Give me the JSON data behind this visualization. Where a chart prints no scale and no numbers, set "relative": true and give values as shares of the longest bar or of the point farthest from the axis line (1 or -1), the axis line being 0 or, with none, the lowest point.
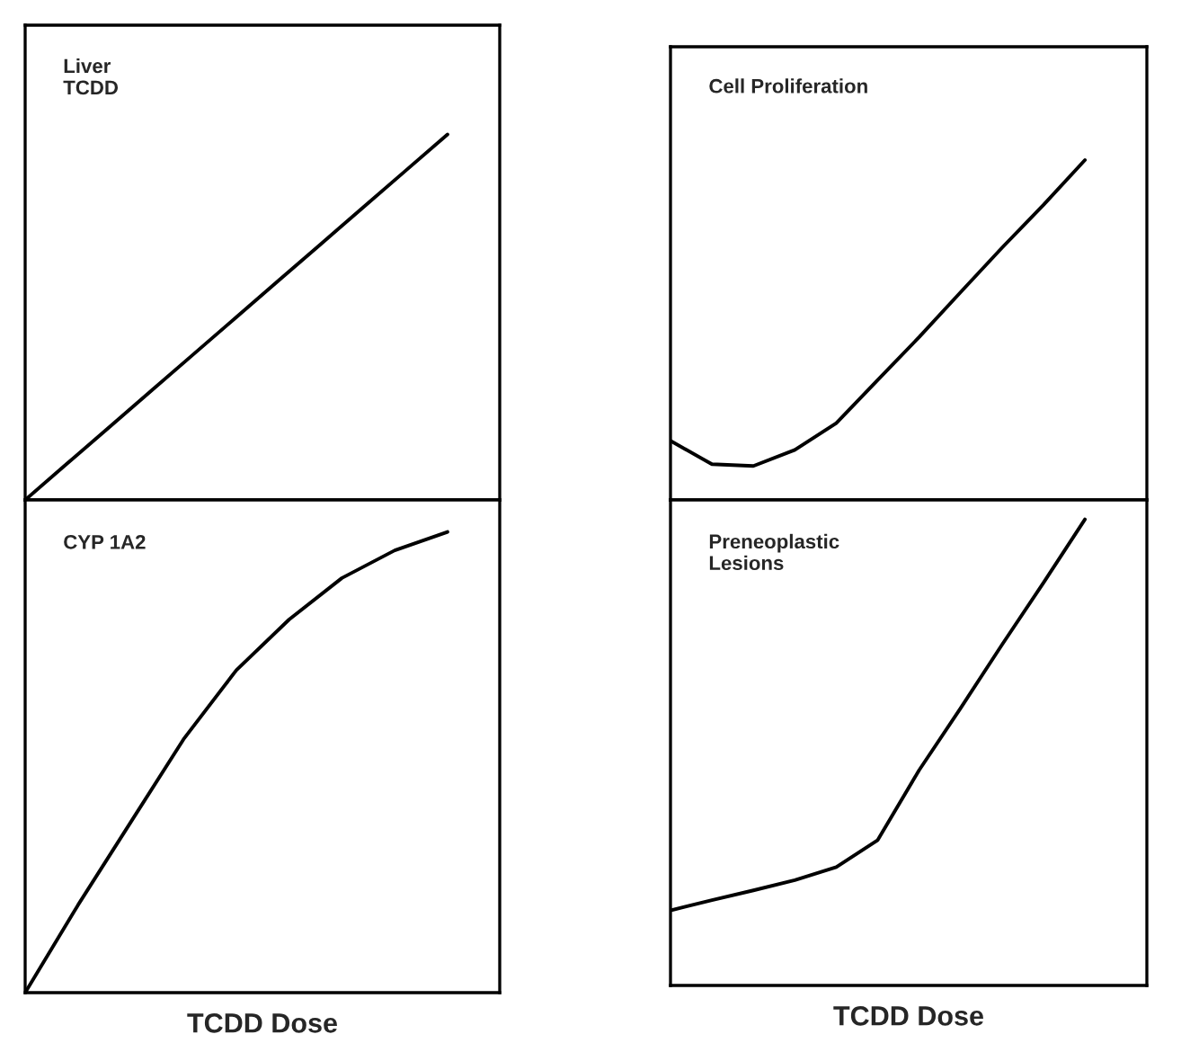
{
  "chart_data": [
    {
      "type": "line",
      "title": "Liver\nTCDD",
      "relative": true,
      "tick_labels": false,
      "categories": [
        null,
        null,
        null,
        null,
        null,
        null,
        null,
        null,
        null,
        null,
        null
      ],
      "series": [
        {
          "color": "#000000",
          "values": [
            0,
            0.1,
            0.2,
            0.3,
            0.4,
            0.5,
            0.6,
            0.7,
            0.8,
            0.9,
            1
          ]
        }
      ]
    },
    {
      "type": "line",
      "title": "CYP 1A2",
      "xlabel": "TCDD Dose",
      "relative": true,
      "tick_labels": false,
      "categories": [
        null,
        null,
        null,
        null,
        null,
        null,
        null,
        null,
        null
      ],
      "series": [
        {
          "color": "#000000",
          "values": [
            0,
            0.19,
            0.37,
            0.55,
            0.7,
            0.81,
            0.9,
            0.96,
            1
          ]
        }
      ]
    },
    {
      "type": "line",
      "title": "Cell Proliferation",
      "relative": true,
      "tick_labels": false,
      "categories": [
        null,
        null,
        null,
        null,
        null,
        null,
        null,
        null,
        null,
        null,
        null
      ],
      "series": [
        {
          "color": "#000000",
          "values": [
            0.174,
            0.105,
            0.1,
            0.147,
            0.226,
            0.353,
            0.479,
            0.611,
            0.742,
            0.868,
            1
          ]
        }
      ]
    },
    {
      "type": "line",
      "title": "Preneoplastic\nLesions",
      "xlabel": "TCDD Dose",
      "relative": true,
      "tick_labels": false,
      "categories": [
        null,
        null,
        null,
        null,
        null,
        null,
        null,
        null,
        null,
        null,
        null
      ],
      "series": [
        {
          "color": "#000000",
          "values": [
            0.161,
            0.183,
            0.204,
            0.226,
            0.254,
            0.312,
            0.462,
            0.595,
            0.731,
            0.864,
            1
          ]
        }
      ]
    }
  ]
}
